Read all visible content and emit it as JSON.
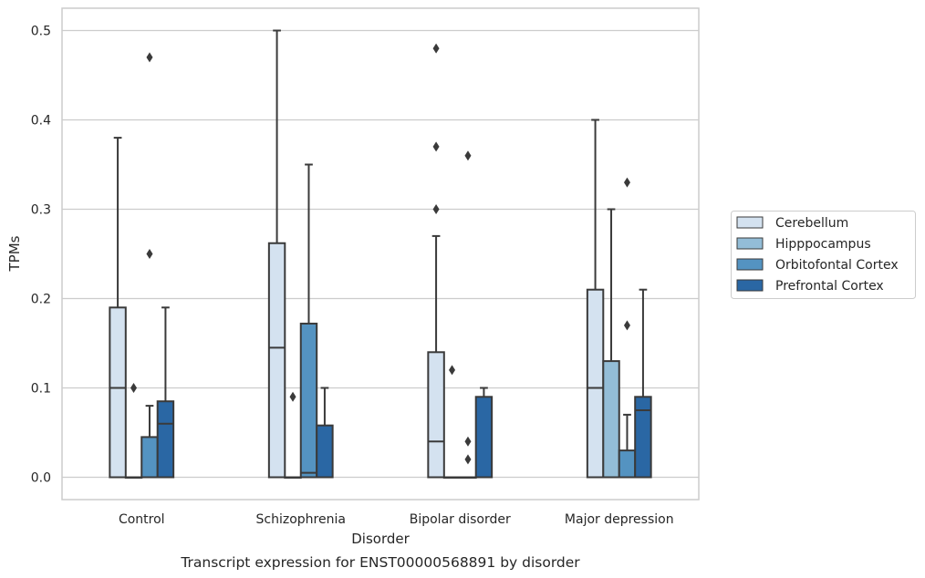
{
  "chart_data": {
    "type": "box",
    "caption": "Transcript expression for ENST00000568891 by disorder",
    "xlabel": "Disorder",
    "ylabel": "TPMs",
    "ylim": [
      -0.025,
      0.525
    ],
    "yticks": [
      0.0,
      0.1,
      0.2,
      0.3,
      0.4,
      0.5
    ],
    "ytick_labels": [
      "0.0",
      "0.1",
      "0.2",
      "0.3",
      "0.4",
      "0.5"
    ],
    "grid": "horizontal",
    "legend_position": "right",
    "categories": [
      "Control",
      "Schizophrenia",
      "Bipolar disorder",
      "Major depression"
    ],
    "series": [
      {
        "name": "Cerebellum",
        "color": "#d4e2f0",
        "boxes": [
          {
            "q1": 0.0,
            "median": 0.1,
            "q3": 0.19,
            "whisker_low": 0.0,
            "whisker_high": 0.38,
            "outliers": []
          },
          {
            "q1": 0.0,
            "median": 0.145,
            "q3": 0.262,
            "whisker_low": 0.0,
            "whisker_high": 0.5,
            "outliers": []
          },
          {
            "q1": 0.0,
            "median": 0.04,
            "q3": 0.14,
            "whisker_low": 0.0,
            "whisker_high": 0.27,
            "outliers": [
              0.3,
              0.37,
              0.48
            ]
          },
          {
            "q1": 0.0,
            "median": 0.1,
            "q3": 0.21,
            "whisker_low": 0.0,
            "whisker_high": 0.4,
            "outliers": []
          }
        ]
      },
      {
        "name": "Hipppocampus",
        "color": "#93bdd7",
        "boxes": [
          {
            "q1": 0.0,
            "median": 0.0,
            "q3": 0.0,
            "whisker_low": 0.0,
            "whisker_high": 0.0,
            "outliers": [
              0.1
            ]
          },
          {
            "q1": 0.0,
            "median": 0.0,
            "q3": 0.0,
            "whisker_low": 0.0,
            "whisker_high": 0.0,
            "outliers": [
              0.09
            ]
          },
          {
            "q1": 0.0,
            "median": 0.0,
            "q3": 0.0,
            "whisker_low": 0.0,
            "whisker_high": 0.0,
            "outliers": [
              0.12
            ]
          },
          {
            "q1": 0.0,
            "median": 0.0,
            "q3": 0.13,
            "whisker_low": 0.0,
            "whisker_high": 0.3,
            "outliers": []
          }
        ]
      },
      {
        "name": "Orbitofontal Cortex",
        "color": "#5493c1",
        "boxes": [
          {
            "q1": 0.0,
            "median": 0.0,
            "q3": 0.045,
            "whisker_low": 0.0,
            "whisker_high": 0.08,
            "outliers": [
              0.25,
              0.47
            ]
          },
          {
            "q1": 0.0,
            "median": 0.005,
            "q3": 0.172,
            "whisker_low": 0.0,
            "whisker_high": 0.35,
            "outliers": []
          },
          {
            "q1": 0.0,
            "median": 0.0,
            "q3": 0.0,
            "whisker_low": 0.0,
            "whisker_high": 0.0,
            "outliers": [
              0.02,
              0.04,
              0.36
            ]
          },
          {
            "q1": 0.0,
            "median": 0.0,
            "q3": 0.03,
            "whisker_low": 0.0,
            "whisker_high": 0.07,
            "outliers": [
              0.17,
              0.33
            ]
          }
        ]
      },
      {
        "name": "Prefrontal Cortex",
        "color": "#2a67a4",
        "boxes": [
          {
            "q1": 0.0,
            "median": 0.06,
            "q3": 0.085,
            "whisker_low": 0.0,
            "whisker_high": 0.19,
            "outliers": []
          },
          {
            "q1": 0.0,
            "median": 0.0,
            "q3": 0.058,
            "whisker_low": 0.0,
            "whisker_high": 0.1,
            "outliers": []
          },
          {
            "q1": 0.0,
            "median": 0.0,
            "q3": 0.09,
            "whisker_low": 0.0,
            "whisker_high": 0.1,
            "outliers": []
          },
          {
            "q1": 0.0,
            "median": 0.075,
            "q3": 0.09,
            "whisker_low": 0.0,
            "whisker_high": 0.21,
            "outliers": []
          }
        ]
      }
    ]
  }
}
